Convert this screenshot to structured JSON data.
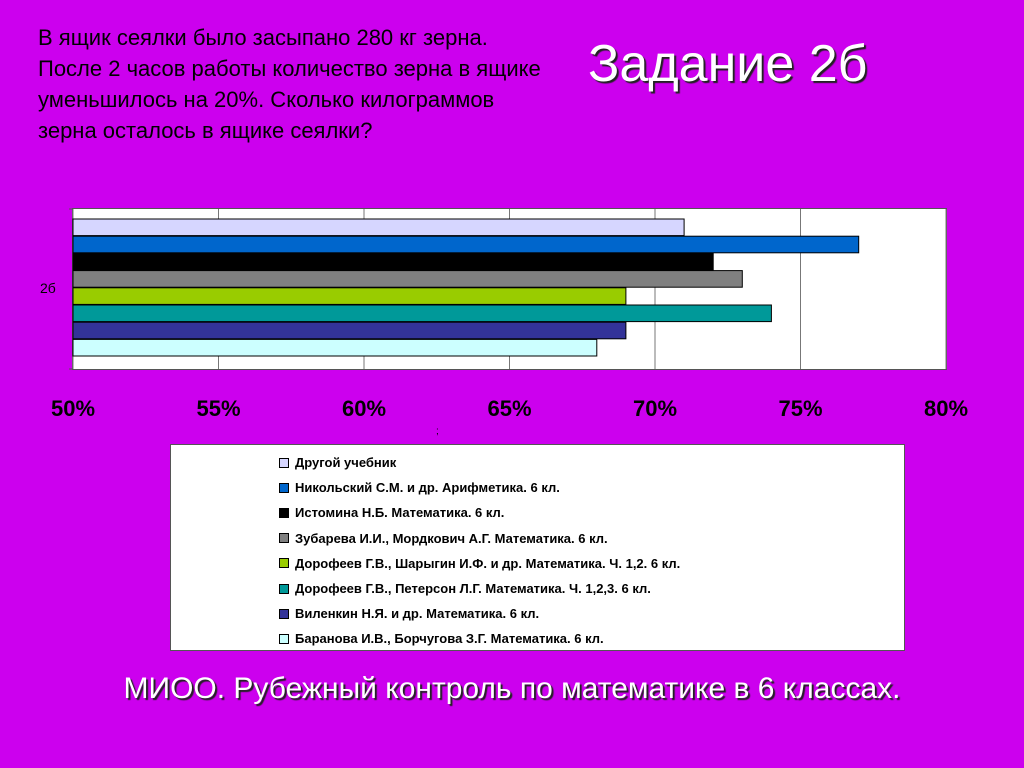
{
  "problem_text": "В ящик сеялки было засыпано 280  кг зерна. После 2 часов работы количество зерна в ящике уменьшилось на 20%. Сколько килограммов зерна осталось в ящике сеялки?",
  "slide_title": "Задание 2б",
  "footer_text": "МИОО. Рубежный контроль по математике в 6 классах.",
  "small_mark": ";",
  "chart_data": {
    "type": "bar",
    "orientation": "horizontal",
    "categories": [
      "2б"
    ],
    "xlim": [
      0.5,
      0.8
    ],
    "x_ticks": [
      "50%",
      "55%",
      "60%",
      "65%",
      "70%",
      "75%",
      "80%"
    ],
    "grid": true,
    "legend_placement": "bottom",
    "series": [
      {
        "name": "Другой учебник",
        "values": [
          0.71
        ],
        "color": "#d6d6ff"
      },
      {
        "name": "Никольский С.М. и др. Арифметика. 6 кл.",
        "values": [
          0.77
        ],
        "color": "#0066cc"
      },
      {
        "name": "Истомина Н.Б. Математика. 6 кл.",
        "values": [
          0.72
        ],
        "color": "#000000"
      },
      {
        "name": "Зубарева И.И., Мордкович А.Г. Математика. 6 кл.",
        "values": [
          0.73
        ],
        "color": "#808080"
      },
      {
        "name": "Дорофеев Г.В., Шарыгин И.Ф. и др. Математика. Ч. 1,2. 6 кл.",
        "values": [
          0.69
        ],
        "color": "#99cc00"
      },
      {
        "name": "Дорофеев Г.В., Петерсон Л.Г. Математика. Ч. 1,2,3. 6 кл.",
        "values": [
          0.74
        ],
        "color": "#009999"
      },
      {
        "name": "Виленкин Н.Я. и др. Математика. 6 кл.",
        "values": [
          0.69
        ],
        "color": "#333399"
      },
      {
        "name": "Баранова И.В., Борчугова З.Г. Математика. 6 кл.",
        "values": [
          0.68
        ],
        "color": "#ccffff"
      }
    ]
  }
}
